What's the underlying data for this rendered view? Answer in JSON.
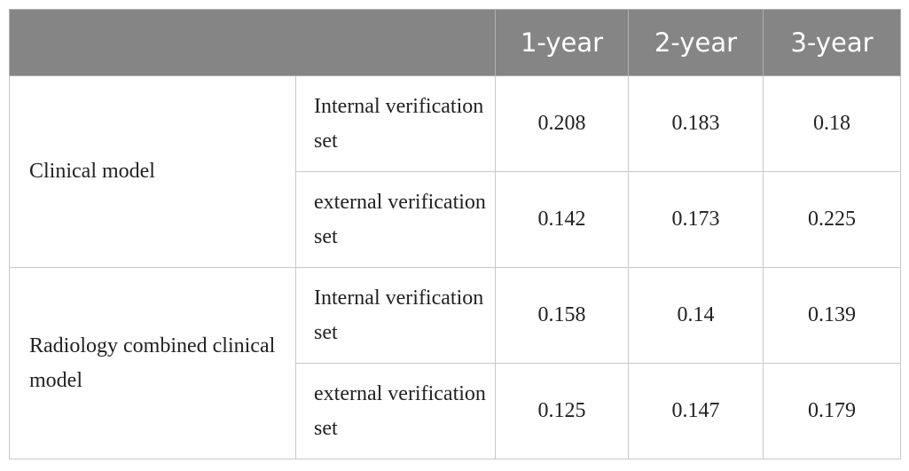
{
  "table": {
    "header": [
      "1-year",
      "2-year",
      "3-year"
    ],
    "groups": [
      {
        "label": "Clinical model",
        "rows": [
          {
            "label": "Internal verification set",
            "values": [
              "0.208",
              "0.183",
              "0.18"
            ]
          },
          {
            "label": "external verification set",
            "values": [
              "0.142",
              "0.173",
              "0.225"
            ]
          }
        ]
      },
      {
        "label": "Radiology combined clinical model",
        "rows": [
          {
            "label": "Internal verification set",
            "values": [
              "0.158",
              "0.14",
              "0.139"
            ]
          },
          {
            "label": "external verification set",
            "values": [
              "0.125",
              "0.147",
              "0.179"
            ]
          }
        ]
      }
    ]
  }
}
